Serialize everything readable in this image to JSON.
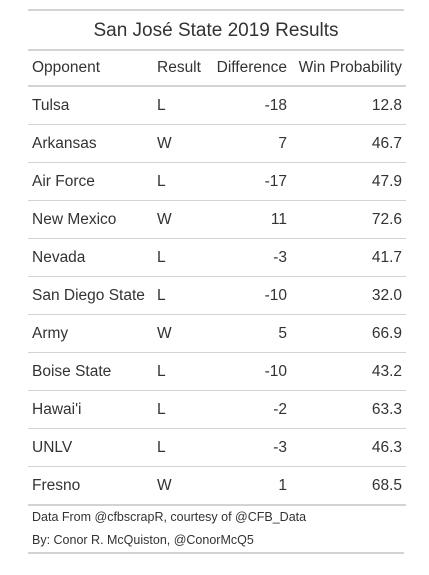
{
  "title": "San José State 2019 Results",
  "columns": {
    "opponent": "Opponent",
    "result": "Result",
    "difference": "Difference",
    "win_probability": "Win Probability"
  },
  "rows": [
    {
      "opponent": "Tulsa",
      "result": "L",
      "difference": "-18",
      "win_probability": "12.8"
    },
    {
      "opponent": "Arkansas",
      "result": "W",
      "difference": "7",
      "win_probability": "46.7"
    },
    {
      "opponent": "Air Force",
      "result": "L",
      "difference": "-17",
      "win_probability": "47.9"
    },
    {
      "opponent": "New Mexico",
      "result": "W",
      "difference": "11",
      "win_probability": "72.6"
    },
    {
      "opponent": "Nevada",
      "result": "L",
      "difference": "-3",
      "win_probability": "41.7"
    },
    {
      "opponent": "San Diego State",
      "result": "L",
      "difference": "-10",
      "win_probability": "32.0"
    },
    {
      "opponent": "Army",
      "result": "W",
      "difference": "5",
      "win_probability": "66.9"
    },
    {
      "opponent": "Boise State",
      "result": "L",
      "difference": "-10",
      "win_probability": "43.2"
    },
    {
      "opponent": "Hawai'i",
      "result": "L",
      "difference": "-2",
      "win_probability": "63.3"
    },
    {
      "opponent": "UNLV",
      "result": "L",
      "difference": "-3",
      "win_probability": "46.3"
    },
    {
      "opponent": "Fresno",
      "result": "W",
      "difference": "1",
      "win_probability": "68.5"
    }
  ],
  "notes": {
    "source": "Data From @cfbscrapR, courtesy of @CFB_Data",
    "author": "By: Conor R. McQuiston, @ConorMcQ5"
  },
  "colors": {
    "text": "#333333",
    "rules": "#d3d3d3",
    "background": "#ffffff"
  }
}
